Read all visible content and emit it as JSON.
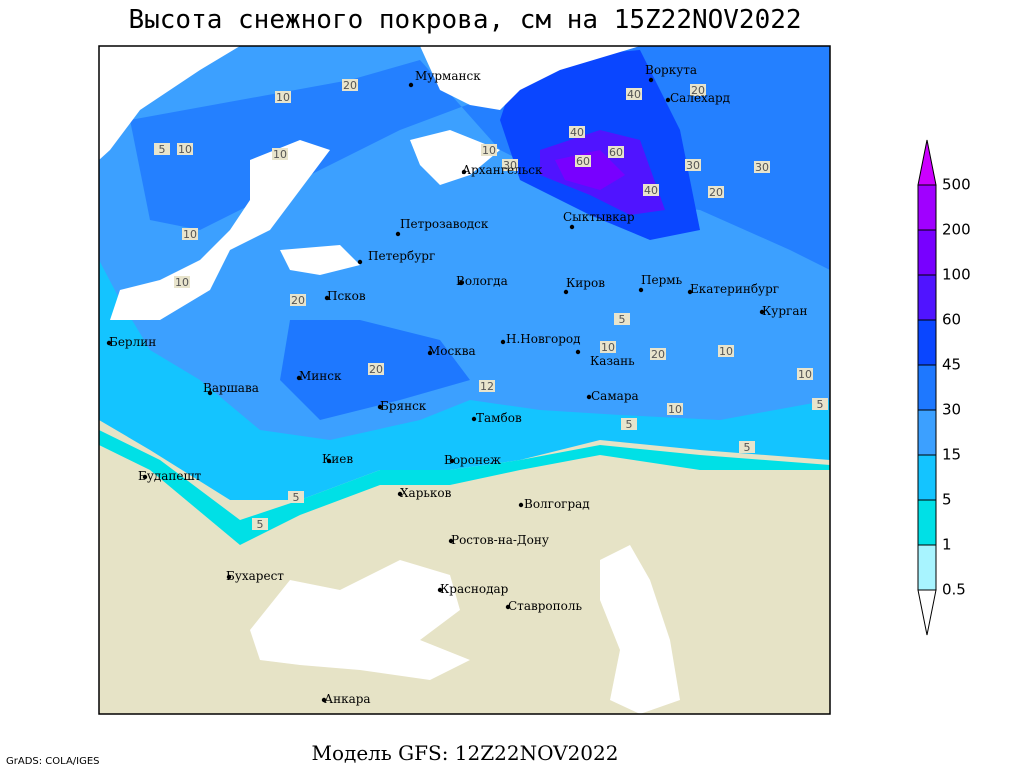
{
  "header": {
    "title": "Высота снежного покрова, см на 15Z22NOV2022"
  },
  "footer": {
    "model": "Модель GFS: 12Z22NOV2022",
    "credit": "GrADS: COLA/IGES"
  },
  "cities": [
    "Мурманск",
    "Воркута",
    "Салехард",
    "Архангельск",
    "Сыктывкар",
    "Петрозаводск",
    "Петербург",
    "Вологда",
    "Киров",
    "Пермь",
    "Екатеринбург",
    "Курган",
    "Псков",
    "Берлин",
    "Н.Новгород",
    "Москва",
    "Казань",
    "Минск",
    "Варшава",
    "Самара",
    "Брянск",
    "Тамбов",
    "Киев",
    "Воронеж",
    "Будапешт",
    "Харьков",
    "Волгоград",
    "Ростов-на-Дону",
    "Бухарест",
    "Краснодар",
    "Ставрополь",
    "Анкара"
  ],
  "contour_labels": [
    "10",
    "20",
    "5",
    "10",
    "10",
    "10",
    "10",
    "20",
    "30",
    "40",
    "40",
    "60",
    "60",
    "40",
    "30",
    "20",
    "30",
    "20",
    "10",
    "20",
    "20",
    "10",
    "10",
    "5",
    "5",
    "12",
    "5",
    "5",
    "5",
    "5",
    "10",
    "10"
  ],
  "colorbar": {
    "labels": [
      "500",
      "200",
      "100",
      "60",
      "45",
      "30",
      "15",
      "5",
      "1",
      "0.5"
    ],
    "colors": [
      "#cc00ff",
      "#a000ff",
      "#7800ff",
      "#5014ff",
      "#0a46ff",
      "#1e78ff",
      "#3ca0ff",
      "#14c4ff",
      "#00e0e6",
      "#a8f4ff",
      "#ffffff"
    ]
  }
}
